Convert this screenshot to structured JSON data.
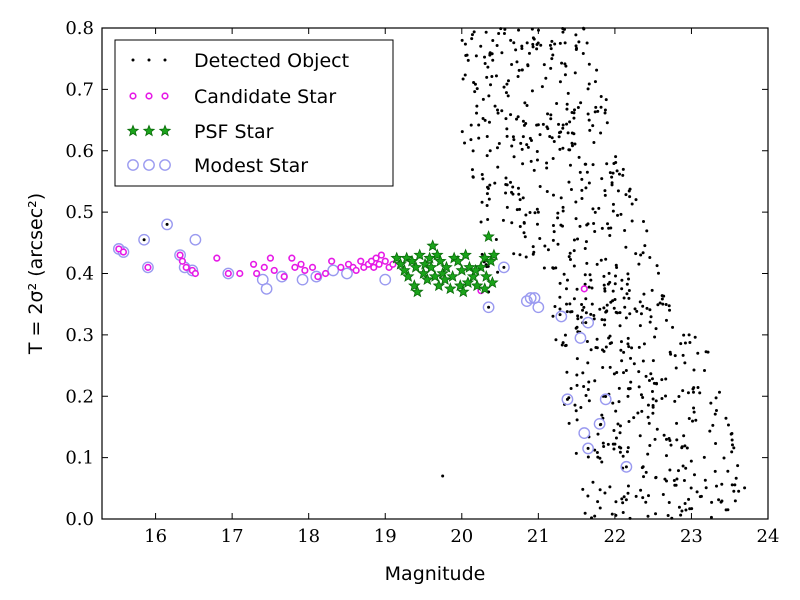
{
  "chart_data": {
    "type": "scatter",
    "xlabel": "Magnitude",
    "ylabel": "T = 2σ² (arcsec²)",
    "xlim": [
      15.3,
      24.0
    ],
    "ylim": [
      0.0,
      0.8
    ],
    "x_ticks": [
      16,
      17,
      18,
      19,
      20,
      21,
      22,
      23,
      24
    ],
    "y_ticks": [
      0.0,
      0.1,
      0.2,
      0.3,
      0.4,
      0.5,
      0.6,
      0.7,
      0.8
    ],
    "grid": false,
    "legend": {
      "position": "top-left",
      "entries": [
        "Detected Object",
        "Candidate Star",
        "PSF Star",
        "Modest Star"
      ]
    },
    "colors": {
      "detected": "#000000",
      "candidate": "#e619e6",
      "psf_fill": "#1aa31a",
      "psf_edge": "#0a6b0a",
      "modest": "#9a9af0"
    },
    "series": [
      {
        "name": "Modest Star",
        "points": [
          [
            15.52,
            0.44
          ],
          [
            15.58,
            0.435
          ],
          [
            15.85,
            0.455
          ],
          [
            15.9,
            0.41
          ],
          [
            16.15,
            0.48
          ],
          [
            16.32,
            0.43
          ],
          [
            16.38,
            0.41
          ],
          [
            16.48,
            0.405
          ],
          [
            16.52,
            0.455
          ],
          [
            16.95,
            0.4
          ],
          [
            17.4,
            0.39
          ],
          [
            17.45,
            0.375
          ],
          [
            17.65,
            0.395
          ],
          [
            17.92,
            0.39
          ],
          [
            18.1,
            0.395
          ],
          [
            18.32,
            0.405
          ],
          [
            18.5,
            0.4
          ],
          [
            19.0,
            0.39
          ],
          [
            20.35,
            0.345
          ],
          [
            20.55,
            0.41
          ],
          [
            20.85,
            0.355
          ],
          [
            20.9,
            0.36
          ],
          [
            20.95,
            0.36
          ],
          [
            21.0,
            0.345
          ],
          [
            21.3,
            0.33
          ],
          [
            21.38,
            0.195
          ],
          [
            21.55,
            0.295
          ],
          [
            21.6,
            0.14
          ],
          [
            21.65,
            0.32
          ],
          [
            21.65,
            0.115
          ],
          [
            21.8,
            0.155
          ],
          [
            21.88,
            0.195
          ],
          [
            22.15,
            0.085
          ]
        ]
      },
      {
        "name": "Candidate Star",
        "points": [
          [
            15.52,
            0.44
          ],
          [
            15.58,
            0.435
          ],
          [
            15.9,
            0.41
          ],
          [
            16.32,
            0.43
          ],
          [
            16.35,
            0.42
          ],
          [
            16.4,
            0.41
          ],
          [
            16.48,
            0.405
          ],
          [
            16.52,
            0.4
          ],
          [
            16.8,
            0.425
          ],
          [
            16.95,
            0.4
          ],
          [
            17.1,
            0.4
          ],
          [
            17.28,
            0.415
          ],
          [
            17.32,
            0.4
          ],
          [
            17.42,
            0.41
          ],
          [
            17.5,
            0.425
          ],
          [
            17.55,
            0.405
          ],
          [
            17.68,
            0.395
          ],
          [
            17.78,
            0.425
          ],
          [
            17.82,
            0.41
          ],
          [
            17.9,
            0.415
          ],
          [
            17.95,
            0.405
          ],
          [
            18.05,
            0.41
          ],
          [
            18.12,
            0.395
          ],
          [
            18.22,
            0.4
          ],
          [
            18.3,
            0.42
          ],
          [
            18.42,
            0.41
          ],
          [
            18.52,
            0.415
          ],
          [
            18.58,
            0.41
          ],
          [
            18.62,
            0.405
          ],
          [
            18.68,
            0.42
          ],
          [
            18.72,
            0.41
          ],
          [
            18.78,
            0.415
          ],
          [
            18.82,
            0.42
          ],
          [
            18.85,
            0.41
          ],
          [
            18.88,
            0.425
          ],
          [
            18.92,
            0.415
          ],
          [
            18.95,
            0.43
          ],
          [
            19.0,
            0.42
          ],
          [
            19.05,
            0.41
          ],
          [
            19.1,
            0.415
          ],
          [
            20.25,
            0.372
          ],
          [
            21.6,
            0.375
          ]
        ]
      },
      {
        "name": "PSF Star",
        "points": [
          [
            19.15,
            0.425
          ],
          [
            19.2,
            0.415
          ],
          [
            19.25,
            0.405
          ],
          [
            19.28,
            0.425
          ],
          [
            19.3,
            0.395
          ],
          [
            19.35,
            0.42
          ],
          [
            19.38,
            0.38
          ],
          [
            19.4,
            0.41
          ],
          [
            19.42,
            0.37
          ],
          [
            19.45,
            0.43
          ],
          [
            19.5,
            0.4
          ],
          [
            19.52,
            0.415
          ],
          [
            19.55,
            0.39
          ],
          [
            19.58,
            0.425
          ],
          [
            19.6,
            0.41
          ],
          [
            19.62,
            0.445
          ],
          [
            19.65,
            0.395
          ],
          [
            19.68,
            0.43
          ],
          [
            19.7,
            0.38
          ],
          [
            19.72,
            0.42
          ],
          [
            19.75,
            0.4
          ],
          [
            19.78,
            0.39
          ],
          [
            19.8,
            0.41
          ],
          [
            19.85,
            0.375
          ],
          [
            19.88,
            0.395
          ],
          [
            19.9,
            0.425
          ],
          [
            19.95,
            0.42
          ],
          [
            19.98,
            0.38
          ],
          [
            20.0,
            0.405
          ],
          [
            20.02,
            0.37
          ],
          [
            20.05,
            0.43
          ],
          [
            20.08,
            0.385
          ],
          [
            20.1,
            0.41
          ],
          [
            20.15,
            0.395
          ],
          [
            20.2,
            0.38
          ],
          [
            20.25,
            0.41
          ],
          [
            20.3,
            0.425
          ],
          [
            20.32,
            0.395
          ],
          [
            20.35,
            0.46
          ],
          [
            20.38,
            0.42
          ],
          [
            20.4,
            0.385
          ],
          [
            20.42,
            0.43
          ],
          [
            20.3,
            0.375
          ],
          [
            20.18,
            0.405
          ]
        ]
      },
      {
        "name": "Detected Object",
        "points": [
          [
            15.85,
            0.455
          ],
          [
            16.15,
            0.48
          ],
          [
            19.75,
            0.07
          ],
          [
            20.35,
            0.345
          ],
          [
            20.55,
            0.41
          ],
          [
            21.62,
            0.32
          ],
          [
            21.38,
            0.195
          ],
          [
            21.65,
            0.115
          ],
          [
            22.15,
            0.085
          ],
          [
            20.35,
            0.37
          ]
        ],
        "random_cloud": {
          "count": 760,
          "x_range": [
            20.0,
            23.7
          ],
          "y_range": [
            0.0,
            0.8
          ]
        }
      }
    ]
  }
}
